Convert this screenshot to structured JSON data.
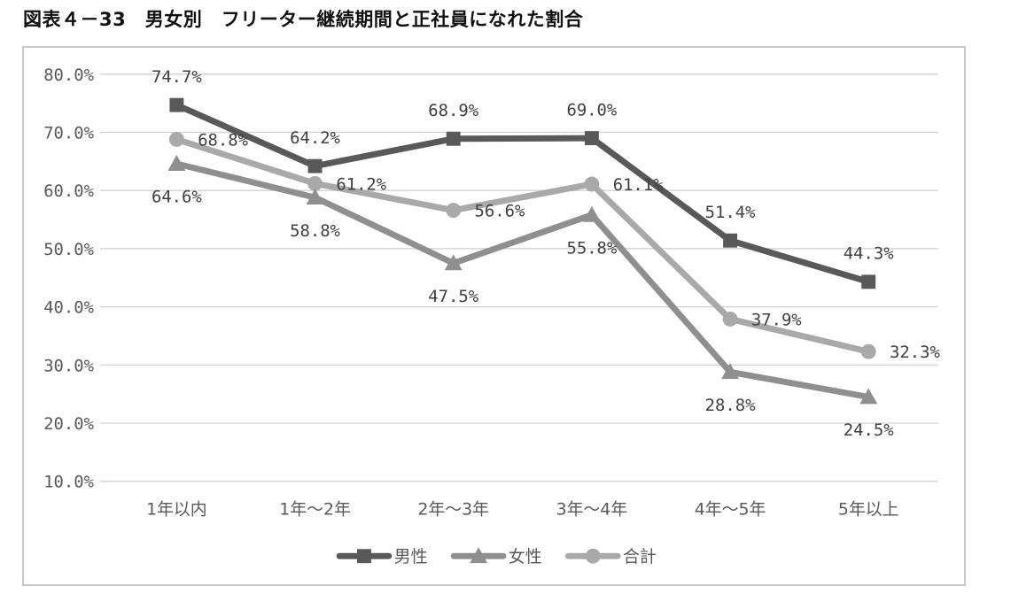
{
  "page": {
    "title": "図表４－33　男女別　フリーター継続期間と正社員になれた割合"
  },
  "chart_data": {
    "type": "line",
    "title": "図表４－33　男女別　フリーター継続期間と正社員になれた割合",
    "categories": [
      "1年以内",
      "1年～2年",
      "2年～3年",
      "3年～4年",
      "4年～5年",
      "5年以上"
    ],
    "series": [
      {
        "id": "male",
        "name": "男性",
        "marker": "square",
        "color": "#595959",
        "values": [
          74.7,
          64.2,
          68.9,
          69.0,
          51.4,
          44.3
        ],
        "data_labels": [
          "74.7%",
          "64.2%",
          "68.9%",
          "69.0%",
          "51.4%",
          "44.3%"
        ],
        "label_position": "above"
      },
      {
        "id": "female",
        "name": "女性",
        "marker": "triangle",
        "color": "#8f8f8f",
        "values": [
          64.6,
          58.8,
          47.5,
          55.8,
          28.8,
          24.5
        ],
        "data_labels": [
          "64.6%",
          "58.8%",
          "47.5%",
          "55.8%",
          "28.8%",
          "24.5%"
        ],
        "label_position": "below"
      },
      {
        "id": "total",
        "name": "合計",
        "marker": "circle",
        "color": "#a9a9a9",
        "values": [
          68.8,
          61.2,
          56.6,
          61.1,
          37.9,
          32.3
        ],
        "data_labels": [
          "68.8%",
          "61.2%",
          "56.6%",
          "61.1%",
          "37.9%",
          "32.3%"
        ],
        "label_position": "right"
      }
    ],
    "xlabel": "",
    "ylabel": "",
    "ylim": [
      10,
      80
    ],
    "ytick_step": 10,
    "ytick_labels": [
      "10.0%",
      "20.0%",
      "30.0%",
      "40.0%",
      "50.0%",
      "60.0%",
      "70.0%",
      "80.0%"
    ],
    "grid": true,
    "legend_position": "bottom",
    "legend_labels": [
      "男性",
      "女性",
      "合計"
    ],
    "colors": {
      "grid_line": "#d6d6d6",
      "axis_text": "#595959",
      "data_label_text": "#404040",
      "frame_border": "#c9c9c9",
      "background": "#ffffff"
    }
  }
}
